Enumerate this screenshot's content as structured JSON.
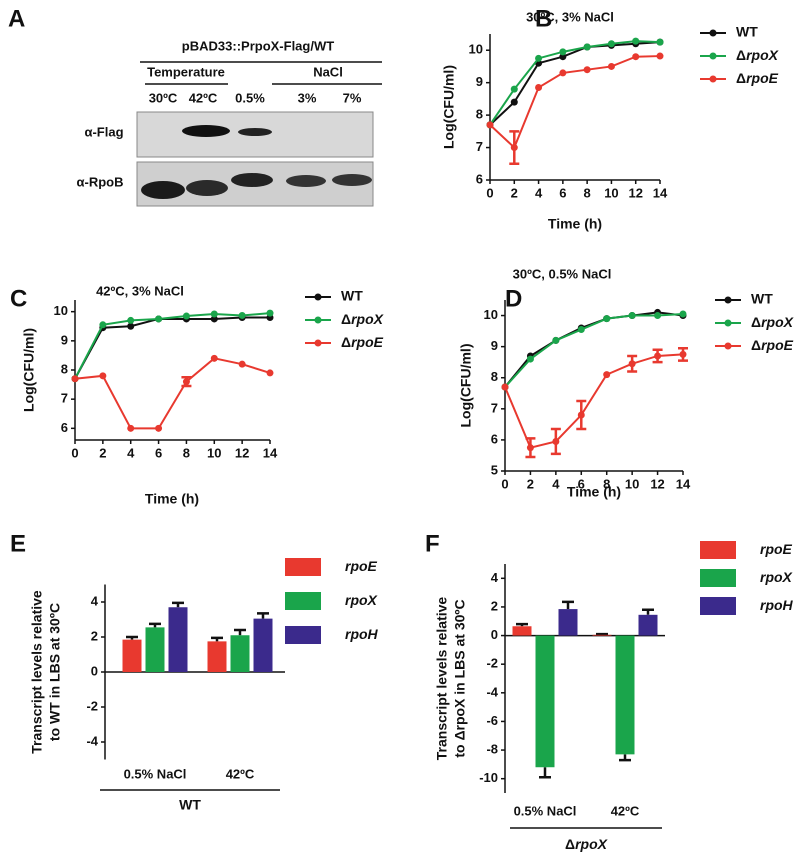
{
  "blot": {
    "panel": "A",
    "construct": "pBAD33::PrpoX-Flag/WT",
    "groups": [
      "Temperature",
      "NaCl"
    ],
    "lanes": [
      "30ºC",
      "42ºC",
      "0.5%",
      "3%",
      "7%"
    ],
    "rows": [
      "α-Flag",
      "α-RpoB"
    ]
  },
  "chart_data": [
    {
      "type": "line",
      "panel": "B",
      "title": "30ºC, 3% NaCl",
      "x_label": "Time (h)",
      "y_label": [
        "Log(CFU/ml)"
      ],
      "x": [
        0,
        2,
        4,
        6,
        8,
        10,
        12,
        14
      ],
      "xlim": [
        0,
        14
      ],
      "xticks": [
        0,
        2,
        4,
        6,
        8,
        10,
        12,
        14
      ],
      "ylim": [
        6,
        10.5
      ],
      "yticks": [
        6,
        7,
        8,
        9,
        10
      ],
      "grid": false,
      "legend": "right",
      "series": [
        {
          "name": "WT",
          "color": "#111111",
          "values": [
            7.7,
            8.4,
            9.6,
            9.8,
            10.1,
            10.15,
            10.2,
            10.25
          ]
        },
        {
          "name": "ΔrpoX",
          "color": "#1aa54b",
          "values": [
            7.7,
            8.8,
            9.75,
            9.95,
            10.1,
            10.2,
            10.28,
            10.25
          ]
        },
        {
          "name": "ΔrpoE",
          "color": "#e8392f",
          "values": [
            7.7,
            7.0,
            8.85,
            9.3,
            9.4,
            9.5,
            9.8,
            9.82
          ],
          "errors": [
            0,
            0.5,
            0,
            0,
            0,
            0,
            0,
            0
          ]
        }
      ]
    },
    {
      "type": "line",
      "panel": "C",
      "title": "42ºC, 3% NaCl",
      "x_label": "Time (h)",
      "y_label": [
        "Log(CFU/ml)"
      ],
      "x": [
        0,
        2,
        4,
        6,
        8,
        10,
        12,
        14
      ],
      "xlim": [
        0,
        14
      ],
      "xticks": [
        0,
        2,
        4,
        6,
        8,
        10,
        12,
        14
      ],
      "ylim": [
        5.6,
        10.4
      ],
      "yticks": [
        6,
        7,
        8,
        9,
        10
      ],
      "grid": false,
      "legend": "right",
      "series": [
        {
          "name": "WT",
          "color": "#111111",
          "values": [
            7.7,
            9.45,
            9.5,
            9.75,
            9.75,
            9.75,
            9.8,
            9.8
          ]
        },
        {
          "name": "ΔrpoX",
          "color": "#1aa54b",
          "values": [
            7.7,
            9.55,
            9.7,
            9.75,
            9.85,
            9.92,
            9.87,
            9.95
          ]
        },
        {
          "name": "ΔrpoE",
          "color": "#e8392f",
          "values": [
            7.7,
            7.8,
            6.0,
            6.0,
            7.6,
            8.4,
            8.2,
            7.9
          ],
          "errors": [
            0,
            0,
            0,
            0,
            0.15,
            0,
            0,
            0
          ]
        }
      ]
    },
    {
      "type": "line",
      "panel": "D",
      "title": "30ºC, 0.5% NaCl",
      "x_label": "Time (h)",
      "y_label": [
        "Log(CFU/ml)"
      ],
      "x": [
        0,
        2,
        4,
        6,
        8,
        10,
        12,
        14
      ],
      "xlim": [
        0,
        14
      ],
      "xticks": [
        0,
        2,
        4,
        6,
        8,
        10,
        12,
        14
      ],
      "ylim": [
        5,
        10.5
      ],
      "yticks": [
        5,
        6,
        7,
        8,
        9,
        10
      ],
      "grid": false,
      "legend": "right",
      "series": [
        {
          "name": "WT",
          "color": "#111111",
          "values": [
            7.7,
            8.7,
            9.2,
            9.6,
            9.9,
            10.0,
            10.1,
            10.0
          ]
        },
        {
          "name": "ΔrpoX",
          "color": "#1aa54b",
          "values": [
            7.7,
            8.6,
            9.2,
            9.55,
            9.9,
            10.0,
            10.0,
            10.05
          ]
        },
        {
          "name": "ΔrpoE",
          "color": "#e8392f",
          "values": [
            7.7,
            5.75,
            5.95,
            6.8,
            8.1,
            8.45,
            8.7,
            8.75
          ],
          "errors": [
            0,
            0.3,
            0.4,
            0.45,
            0,
            0.25,
            0.2,
            0.2
          ]
        }
      ]
    },
    {
      "type": "bar",
      "panel": "E",
      "y_label": [
        "Transcript levels relative",
        "to WT in LBS at 30ºC"
      ],
      "categories": [
        "0.5% NaCl",
        "42ºC"
      ],
      "group_label": "WT",
      "ylim": [
        -5,
        5
      ],
      "yticks": [
        -4,
        -2,
        0,
        2,
        4
      ],
      "grid": false,
      "legend": "right",
      "series": [
        {
          "name": "rpoE",
          "color": "#e8392f",
          "values": [
            1.85,
            1.75
          ],
          "errors": [
            0.15,
            0.2
          ]
        },
        {
          "name": "rpoX",
          "color": "#1aa54b",
          "values": [
            2.55,
            2.1
          ],
          "errors": [
            0.2,
            0.3
          ]
        },
        {
          "name": "rpoH",
          "color": "#3b2a8c",
          "values": [
            3.7,
            3.05
          ],
          "errors": [
            0.25,
            0.3
          ]
        }
      ]
    },
    {
      "type": "bar",
      "panel": "F",
      "y_label": [
        "Transcript levels relative",
        "to ΔrpoX in LBS at 30ºC"
      ],
      "categories": [
        "0.5% NaCl",
        "42ºC"
      ],
      "group_label": "ΔrpoX",
      "ylim": [
        -11,
        5
      ],
      "yticks": [
        -10,
        -8,
        -6,
        -4,
        -2,
        0,
        2,
        4
      ],
      "grid": false,
      "legend": "right",
      "series": [
        {
          "name": "rpoE",
          "color": "#e8392f",
          "values": [
            0.65,
            0.05
          ],
          "errors": [
            0.15,
            0.05
          ]
        },
        {
          "name": "rpoX",
          "color": "#1aa54b",
          "values": [
            -9.2,
            -8.3
          ],
          "errors": [
            0.7,
            0.4
          ]
        },
        {
          "name": "rpoH",
          "color": "#3b2a8c",
          "values": [
            1.85,
            1.45
          ],
          "errors": [
            0.5,
            0.35
          ]
        }
      ]
    }
  ]
}
